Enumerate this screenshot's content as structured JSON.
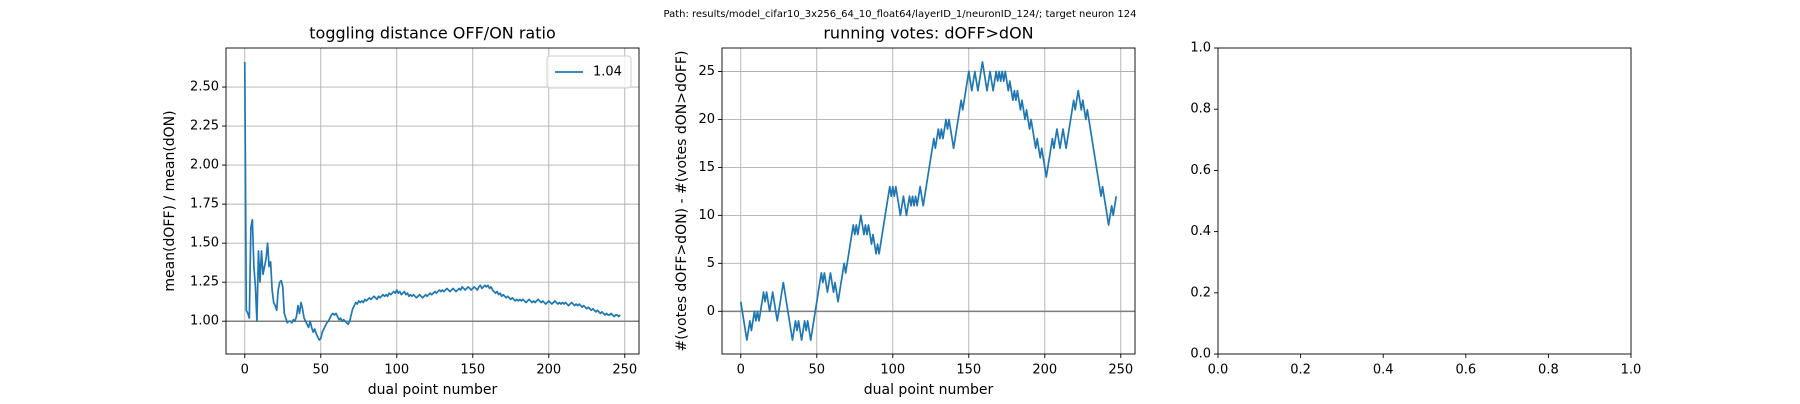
{
  "figure_title": "Path: results/model_cifar10_3x256_64_10_float64/layerID_1/neuronID_124/; target neuron 124",
  "chart_data": [
    {
      "type": "line",
      "title": "toggling distance OFF/ON ratio",
      "xlabel": "dual point number",
      "ylabel": "mean(dOFF) / mean(dON)",
      "xlim": [
        -12.35,
        259.35
      ],
      "ylim": [
        0.79,
        2.75
      ],
      "xticks": [
        0,
        50,
        100,
        150,
        200,
        250
      ],
      "yticks": [
        {
          "value": 1,
          "label": "1.00"
        },
        {
          "value": 1.25,
          "label": "1.25"
        },
        {
          "value": 1.5,
          "label": "1.50"
        },
        {
          "value": 1.75,
          "label": "1.75"
        },
        {
          "value": 2,
          "label": "2.00"
        },
        {
          "value": 2.25,
          "label": "2.25"
        },
        {
          "value": 2.5,
          "label": "2.50"
        }
      ],
      "grid": true,
      "hline": 1,
      "legend": "upper right",
      "x": [
        0,
        1,
        2,
        3,
        4,
        5,
        6,
        7,
        8,
        9,
        10,
        11,
        12,
        13,
        14,
        15,
        16,
        17,
        18,
        19,
        20,
        21,
        22,
        23,
        24,
        25,
        26,
        27,
        28,
        29,
        30,
        31,
        32,
        33,
        34,
        35,
        36,
        37,
        38,
        39,
        40,
        41,
        42,
        43,
        44,
        45,
        46,
        47,
        48,
        49,
        50,
        51,
        52,
        53,
        54,
        55,
        56,
        57,
        58,
        59,
        60,
        61,
        62,
        63,
        64,
        65,
        66,
        67,
        68,
        69,
        70,
        71,
        72,
        73,
        74,
        75,
        76,
        77,
        78,
        79,
        80,
        81,
        82,
        83,
        84,
        85,
        86,
        87,
        88,
        89,
        90,
        91,
        92,
        93,
        94,
        95,
        96,
        97,
        98,
        99,
        100,
        101,
        102,
        103,
        104,
        105,
        106,
        107,
        108,
        109,
        110,
        111,
        112,
        113,
        114,
        115,
        116,
        117,
        118,
        119,
        120,
        121,
        122,
        123,
        124,
        125,
        126,
        127,
        128,
        129,
        130,
        131,
        132,
        133,
        134,
        135,
        136,
        137,
        138,
        139,
        140,
        141,
        142,
        143,
        144,
        145,
        146,
        147,
        148,
        149,
        150,
        151,
        152,
        153,
        154,
        155,
        156,
        157,
        158,
        159,
        160,
        161,
        162,
        163,
        164,
        165,
        166,
        167,
        168,
        169,
        170,
        171,
        172,
        173,
        174,
        175,
        176,
        177,
        178,
        179,
        180,
        181,
        182,
        183,
        184,
        185,
        186,
        187,
        188,
        189,
        190,
        191,
        192,
        193,
        194,
        195,
        196,
        197,
        198,
        199,
        200,
        201,
        202,
        203,
        204,
        205,
        206,
        207,
        208,
        209,
        210,
        211,
        212,
        213,
        214,
        215,
        216,
        217,
        218,
        219,
        220,
        221,
        222,
        223,
        224,
        225,
        226,
        227,
        228,
        229,
        230,
        231,
        232,
        233,
        234,
        235,
        236,
        237,
        238,
        239,
        240,
        241,
        242,
        243,
        244,
        245,
        246,
        247
      ],
      "series": [
        {
          "name": "1.04",
          "color": "#1f77b4",
          "values": [
            2.66,
            1.07,
            1.05,
            1.02,
            1.6,
            1.65,
            1.35,
            1.22,
            1.0,
            1.45,
            1.25,
            1.45,
            1.3,
            1.35,
            1.4,
            1.5,
            1.35,
            1.38,
            1.2,
            1.12,
            1.1,
            1.07,
            1.2,
            1.25,
            1.26,
            1.22,
            1.05,
            1.02,
            0.99,
            1.0,
            1.0,
            0.99,
            1.01,
            1.0,
            1.03,
            1.1,
            1.05,
            1.12,
            1.08,
            1.02,
            1.0,
            0.98,
            0.96,
            1.0,
            0.96,
            0.93,
            0.95,
            0.92,
            0.9,
            0.88,
            0.89,
            0.93,
            0.95,
            0.97,
            0.99,
            1.0,
            1.02,
            1.04,
            1.05,
            1.04,
            1.05,
            1.03,
            1.01,
            1.02,
            1.0,
            1.01,
            1.0,
            0.99,
            0.98,
            1.0,
            1.04,
            1.08,
            1.1,
            1.12,
            1.11,
            1.13,
            1.12,
            1.13,
            1.12,
            1.14,
            1.13,
            1.14,
            1.15,
            1.14,
            1.15,
            1.16,
            1.15,
            1.14,
            1.16,
            1.15,
            1.16,
            1.17,
            1.16,
            1.17,
            1.16,
            1.18,
            1.17,
            1.18,
            1.19,
            1.18,
            1.2,
            1.18,
            1.19,
            1.17,
            1.18,
            1.19,
            1.17,
            1.18,
            1.16,
            1.17,
            1.16,
            1.17,
            1.16,
            1.15,
            1.16,
            1.17,
            1.16,
            1.15,
            1.16,
            1.17,
            1.16,
            1.17,
            1.18,
            1.17,
            1.18,
            1.19,
            1.18,
            1.19,
            1.2,
            1.19,
            1.2,
            1.19,
            1.2,
            1.21,
            1.2,
            1.19,
            1.2,
            1.21,
            1.2,
            1.19,
            1.2,
            1.21,
            1.2,
            1.22,
            1.21,
            1.2,
            1.21,
            1.22,
            1.21,
            1.2,
            1.21,
            1.22,
            1.21,
            1.2,
            1.22,
            1.23,
            1.21,
            1.22,
            1.23,
            1.22,
            1.23,
            1.21,
            1.22,
            1.2,
            1.19,
            1.18,
            1.19,
            1.17,
            1.18,
            1.16,
            1.17,
            1.16,
            1.15,
            1.16,
            1.15,
            1.14,
            1.15,
            1.14,
            1.13,
            1.14,
            1.13,
            1.14,
            1.13,
            1.14,
            1.13,
            1.12,
            1.13,
            1.14,
            1.13,
            1.12,
            1.13,
            1.12,
            1.13,
            1.14,
            1.13,
            1.12,
            1.13,
            1.12,
            1.11,
            1.12,
            1.13,
            1.12,
            1.11,
            1.12,
            1.13,
            1.12,
            1.11,
            1.12,
            1.11,
            1.12,
            1.11,
            1.12,
            1.11,
            1.1,
            1.11,
            1.12,
            1.11,
            1.1,
            1.11,
            1.1,
            1.11,
            1.1,
            1.09,
            1.1,
            1.09,
            1.08,
            1.09,
            1.08,
            1.07,
            1.08,
            1.07,
            1.06,
            1.07,
            1.06,
            1.05,
            1.06,
            1.05,
            1.04,
            1.05,
            1.04,
            1.04,
            1.05,
            1.04,
            1.03,
            1.04,
            1.04,
            1.03,
            1.04
          ]
        }
      ]
    },
    {
      "type": "line",
      "title": "running votes: dOFF>dON",
      "xlabel": "dual point number",
      "ylabel": "#(votes dOFF>dON) - #(votes dON>dOFF)",
      "xlim": [
        -12.35,
        259.35
      ],
      "ylim": [
        -4.45,
        27.45
      ],
      "xticks": [
        0,
        50,
        100,
        150,
        200,
        250
      ],
      "yticks": [
        0,
        5,
        10,
        15,
        20,
        25
      ],
      "grid": true,
      "hline": 0,
      "x": [
        0,
        1,
        2,
        3,
        4,
        5,
        6,
        7,
        8,
        9,
        10,
        11,
        12,
        13,
        14,
        15,
        16,
        17,
        18,
        19,
        20,
        21,
        22,
        23,
        24,
        25,
        26,
        27,
        28,
        29,
        30,
        31,
        32,
        33,
        34,
        35,
        36,
        37,
        38,
        39,
        40,
        41,
        42,
        43,
        44,
        45,
        46,
        47,
        48,
        49,
        50,
        51,
        52,
        53,
        54,
        55,
        56,
        57,
        58,
        59,
        60,
        61,
        62,
        63,
        64,
        65,
        66,
        67,
        68,
        69,
        70,
        71,
        72,
        73,
        74,
        75,
        76,
        77,
        78,
        79,
        80,
        81,
        82,
        83,
        84,
        85,
        86,
        87,
        88,
        89,
        90,
        91,
        92,
        93,
        94,
        95,
        96,
        97,
        98,
        99,
        100,
        101,
        102,
        103,
        104,
        105,
        106,
        107,
        108,
        109,
        110,
        111,
        112,
        113,
        114,
        115,
        116,
        117,
        118,
        119,
        120,
        121,
        122,
        123,
        124,
        125,
        126,
        127,
        128,
        129,
        130,
        131,
        132,
        133,
        134,
        135,
        136,
        137,
        138,
        139,
        140,
        141,
        142,
        143,
        144,
        145,
        146,
        147,
        148,
        149,
        150,
        151,
        152,
        153,
        154,
        155,
        156,
        157,
        158,
        159,
        160,
        161,
        162,
        163,
        164,
        165,
        166,
        167,
        168,
        169,
        170,
        171,
        172,
        173,
        174,
        175,
        176,
        177,
        178,
        179,
        180,
        181,
        182,
        183,
        184,
        185,
        186,
        187,
        188,
        189,
        190,
        191,
        192,
        193,
        194,
        195,
        196,
        197,
        198,
        199,
        200,
        201,
        202,
        203,
        204,
        205,
        206,
        207,
        208,
        209,
        210,
        211,
        212,
        213,
        214,
        215,
        216,
        217,
        218,
        219,
        220,
        221,
        222,
        223,
        224,
        225,
        226,
        227,
        228,
        229,
        230,
        231,
        232,
        233,
        234,
        235,
        236,
        237,
        238,
        239,
        240,
        241,
        242,
        243,
        244,
        245,
        246,
        247
      ],
      "series": [
        {
          "color": "#1f77b4",
          "values": [
            1,
            0,
            -1,
            -2,
            -3,
            -2,
            -1,
            -2,
            -1,
            0,
            -1,
            0,
            -1,
            0,
            1,
            2,
            1,
            2,
            1,
            0,
            1,
            2,
            1,
            0,
            -1,
            0,
            1,
            2,
            3,
            2,
            1,
            0,
            -1,
            -2,
            -3,
            -2,
            -1,
            -2,
            -1,
            -2,
            -3,
            -2,
            -1,
            -2,
            -1,
            -2,
            -3,
            -2,
            -1,
            0,
            1,
            2,
            3,
            4,
            3,
            4,
            3,
            2,
            3,
            4,
            3,
            2,
            3,
            2,
            1,
            2,
            3,
            4,
            5,
            4,
            5,
            6,
            7,
            8,
            9,
            8,
            9,
            8,
            9,
            10,
            9,
            8,
            9,
            8,
            9,
            8,
            7,
            8,
            7,
            6,
            7,
            6,
            7,
            8,
            9,
            10,
            11,
            12,
            13,
            12,
            13,
            12,
            13,
            12,
            11,
            10,
            11,
            12,
            11,
            10,
            11,
            12,
            11,
            12,
            11,
            12,
            11,
            12,
            13,
            12,
            11,
            12,
            13,
            14,
            15,
            16,
            17,
            18,
            17,
            18,
            19,
            18,
            19,
            18,
            19,
            20,
            19,
            20,
            19,
            18,
            17,
            18,
            19,
            20,
            21,
            22,
            21,
            22,
            23,
            24,
            25,
            24,
            23,
            24,
            25,
            24,
            23,
            24,
            25,
            26,
            25,
            24,
            23,
            24,
            25,
            24,
            23,
            24,
            25,
            24,
            25,
            24,
            25,
            24,
            25,
            24,
            23,
            24,
            23,
            22,
            23,
            22,
            23,
            22,
            21,
            22,
            21,
            20,
            21,
            20,
            19,
            20,
            19,
            18,
            17,
            18,
            17,
            16,
            17,
            16,
            15,
            14,
            15,
            16,
            17,
            18,
            17,
            18,
            19,
            18,
            17,
            18,
            19,
            18,
            17,
            18,
            19,
            20,
            21,
            22,
            21,
            22,
            23,
            22,
            21,
            22,
            21,
            20,
            21,
            20,
            19,
            18,
            17,
            16,
            15,
            14,
            13,
            12,
            13,
            12,
            11,
            10,
            9,
            10,
            11,
            10,
            11,
            12
          ]
        }
      ]
    },
    {
      "type": "empty",
      "xlim": [
        0,
        1
      ],
      "ylim": [
        0,
        1
      ],
      "xticks": [
        {
          "value": 0,
          "label": "0.0"
        },
        0.2,
        0.4,
        0.6,
        0.8,
        {
          "value": 1,
          "label": "1.0"
        }
      ],
      "yticks": [
        {
          "value": 0,
          "label": "0.0"
        },
        0.2,
        0.4,
        0.6,
        0.8,
        {
          "value": 1,
          "label": "1.0"
        }
      ],
      "grid": false
    }
  ]
}
